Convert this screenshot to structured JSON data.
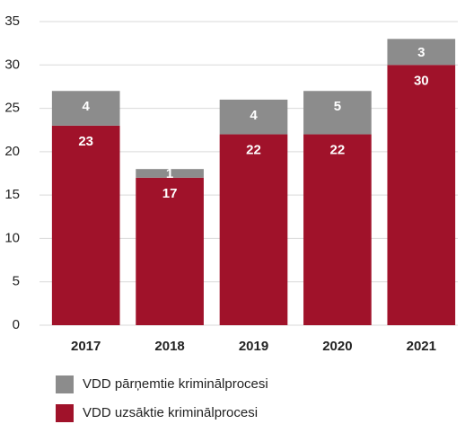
{
  "chart_data": {
    "type": "stacked_bar",
    "categories": [
      "2017",
      "2018",
      "2019",
      "2020",
      "2021"
    ],
    "series": [
      {
        "name": "VDD uzsāktie kriminālprocesi",
        "color": "#a0122a",
        "values": [
          23,
          17,
          22,
          22,
          30
        ]
      },
      {
        "name": "VDD pārņemtie kriminālprocesi",
        "color": "#8c8c8c",
        "values": [
          4,
          1,
          4,
          5,
          3
        ]
      }
    ],
    "ylim": [
      0,
      35
    ],
    "yticks": [
      0,
      5,
      10,
      15,
      20,
      25,
      30,
      35
    ],
    "grid": true
  }
}
